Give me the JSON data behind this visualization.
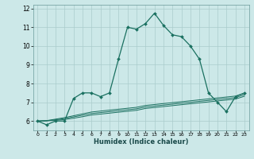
{
  "xlabel": "Humidex (Indice chaleur)",
  "background_color": "#cce8e8",
  "grid_color": "#aacccc",
  "line_color": "#1a7060",
  "xlim": [
    -0.5,
    23.5
  ],
  "ylim": [
    5.5,
    12.2
  ],
  "xticks": [
    0,
    1,
    2,
    3,
    4,
    5,
    6,
    7,
    8,
    9,
    10,
    11,
    12,
    13,
    14,
    15,
    16,
    17,
    18,
    19,
    20,
    21,
    22,
    23
  ],
  "yticks": [
    6,
    7,
    8,
    9,
    10,
    11,
    12
  ],
  "main_y": [
    6.0,
    5.8,
    6.0,
    6.0,
    7.2,
    7.5,
    7.5,
    7.3,
    7.5,
    9.3,
    11.0,
    10.9,
    11.2,
    11.75,
    11.1,
    10.6,
    10.5,
    10.0,
    9.3,
    7.5,
    7.0,
    6.5,
    7.3,
    7.5
  ],
  "line1_y": [
    6.0,
    6.02,
    6.1,
    6.18,
    6.28,
    6.38,
    6.48,
    6.53,
    6.58,
    6.63,
    6.68,
    6.73,
    6.83,
    6.88,
    6.93,
    6.98,
    7.03,
    7.08,
    7.13,
    7.18,
    7.23,
    7.28,
    7.33,
    7.48
  ],
  "line2_y": [
    6.0,
    6.01,
    6.07,
    6.13,
    6.22,
    6.31,
    6.4,
    6.45,
    6.5,
    6.55,
    6.6,
    6.65,
    6.75,
    6.8,
    6.85,
    6.9,
    6.95,
    7.0,
    7.05,
    7.1,
    7.15,
    7.2,
    7.25,
    7.4
  ],
  "line3_y": [
    6.0,
    6.01,
    6.04,
    6.08,
    6.15,
    6.23,
    6.32,
    6.37,
    6.42,
    6.47,
    6.52,
    6.57,
    6.67,
    6.72,
    6.77,
    6.82,
    6.87,
    6.92,
    6.97,
    7.02,
    7.07,
    7.12,
    7.17,
    7.32
  ]
}
